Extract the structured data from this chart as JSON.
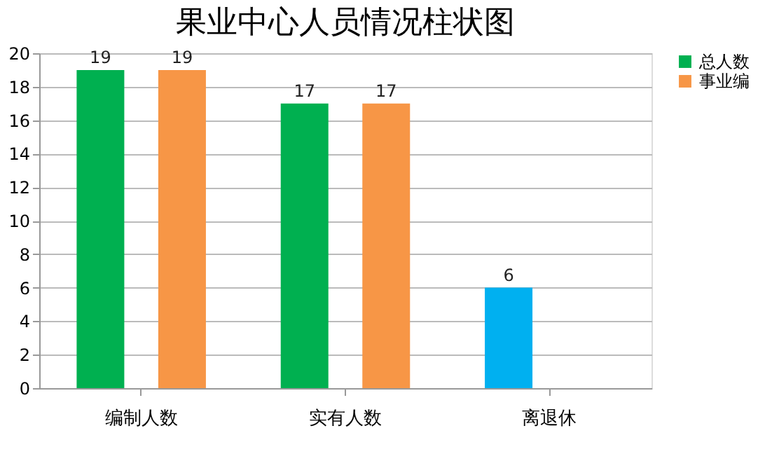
{
  "chart_data": {
    "type": "bar",
    "title": "果业中心人员情况柱状图",
    "categories": [
      "编制人数",
      "实有人数",
      "离退休"
    ],
    "series": [
      {
        "name": "总人数",
        "color": "#00b050",
        "colors": [
          "#00b050",
          "#00b050",
          "#00b0f0"
        ],
        "values": [
          19,
          17,
          6
        ]
      },
      {
        "name": "事业编",
        "color": "#f79646",
        "values": [
          19,
          17,
          null
        ]
      }
    ],
    "ylim": [
      0,
      20
    ],
    "yticks": [
      0,
      2,
      4,
      6,
      8,
      10,
      12,
      14,
      16,
      18,
      20
    ],
    "grid": "y",
    "legend": "right",
    "data_labels": true
  }
}
